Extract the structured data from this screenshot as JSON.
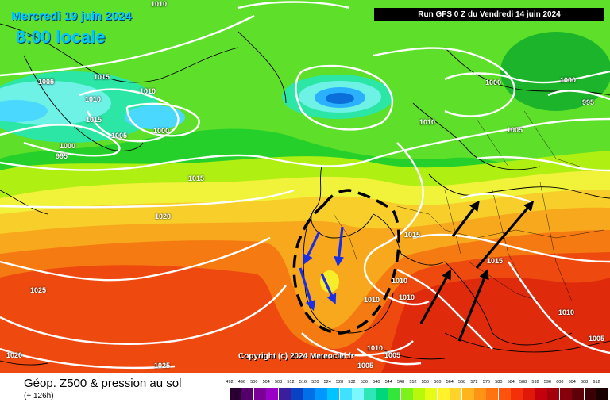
{
  "header": {
    "date": "Mercredi 19 juin 2024",
    "local_time": "8:00 locale",
    "run": "Run GFS 0 Z du Vendredi 14 juin 2024"
  },
  "copyright": "Copyright (c) 2024 Meteociel.fr",
  "footer": {
    "title": "Géop. Z500 & pression au sol",
    "lead": "(+ 126h)"
  },
  "scale": {
    "labels": [
      "492",
      "496",
      "500",
      "504",
      "508",
      "512",
      "516",
      "520",
      "524",
      "528",
      "532",
      "536",
      "540",
      "544",
      "548",
      "552",
      "556",
      "560",
      "564",
      "568",
      "572",
      "576",
      "580",
      "584",
      "588",
      "592",
      "596",
      "600",
      "604",
      "608",
      "612"
    ],
    "colors": [
      "#2a0033",
      "#55006a",
      "#7a0098",
      "#9b00c6",
      "#3a1e9e",
      "#0a42c4",
      "#0070e8",
      "#0098ff",
      "#00c3ff",
      "#40e0ff",
      "#7cf7ff",
      "#2ee6b6",
      "#00d77a",
      "#32e63c",
      "#7cf21a",
      "#b8f80c",
      "#e6fc14",
      "#fff22a",
      "#ffd42a",
      "#ffb41e",
      "#ff9414",
      "#ff7410",
      "#ff520c",
      "#f4300a",
      "#e0180a",
      "#c4000c",
      "#a3000c",
      "#85000a",
      "#5e0008",
      "#3a0006",
      "#1a0000"
    ]
  },
  "isobars": [
    "1010",
    "1010",
    "1005",
    "1015",
    "1010",
    "1015",
    "1005",
    "1000",
    "1000",
    "995",
    "1010",
    "1000",
    "1000",
    "995",
    "1010",
    "1005",
    "1015",
    "1020",
    "1015",
    "1010",
    "1010",
    "1010",
    "1015",
    "1025",
    "1020",
    "1025",
    "1010",
    "1005",
    "1005",
    "1010",
    "1005"
  ],
  "icons": [
    "blue-arrow-icon",
    "black-arrow-icon"
  ]
}
